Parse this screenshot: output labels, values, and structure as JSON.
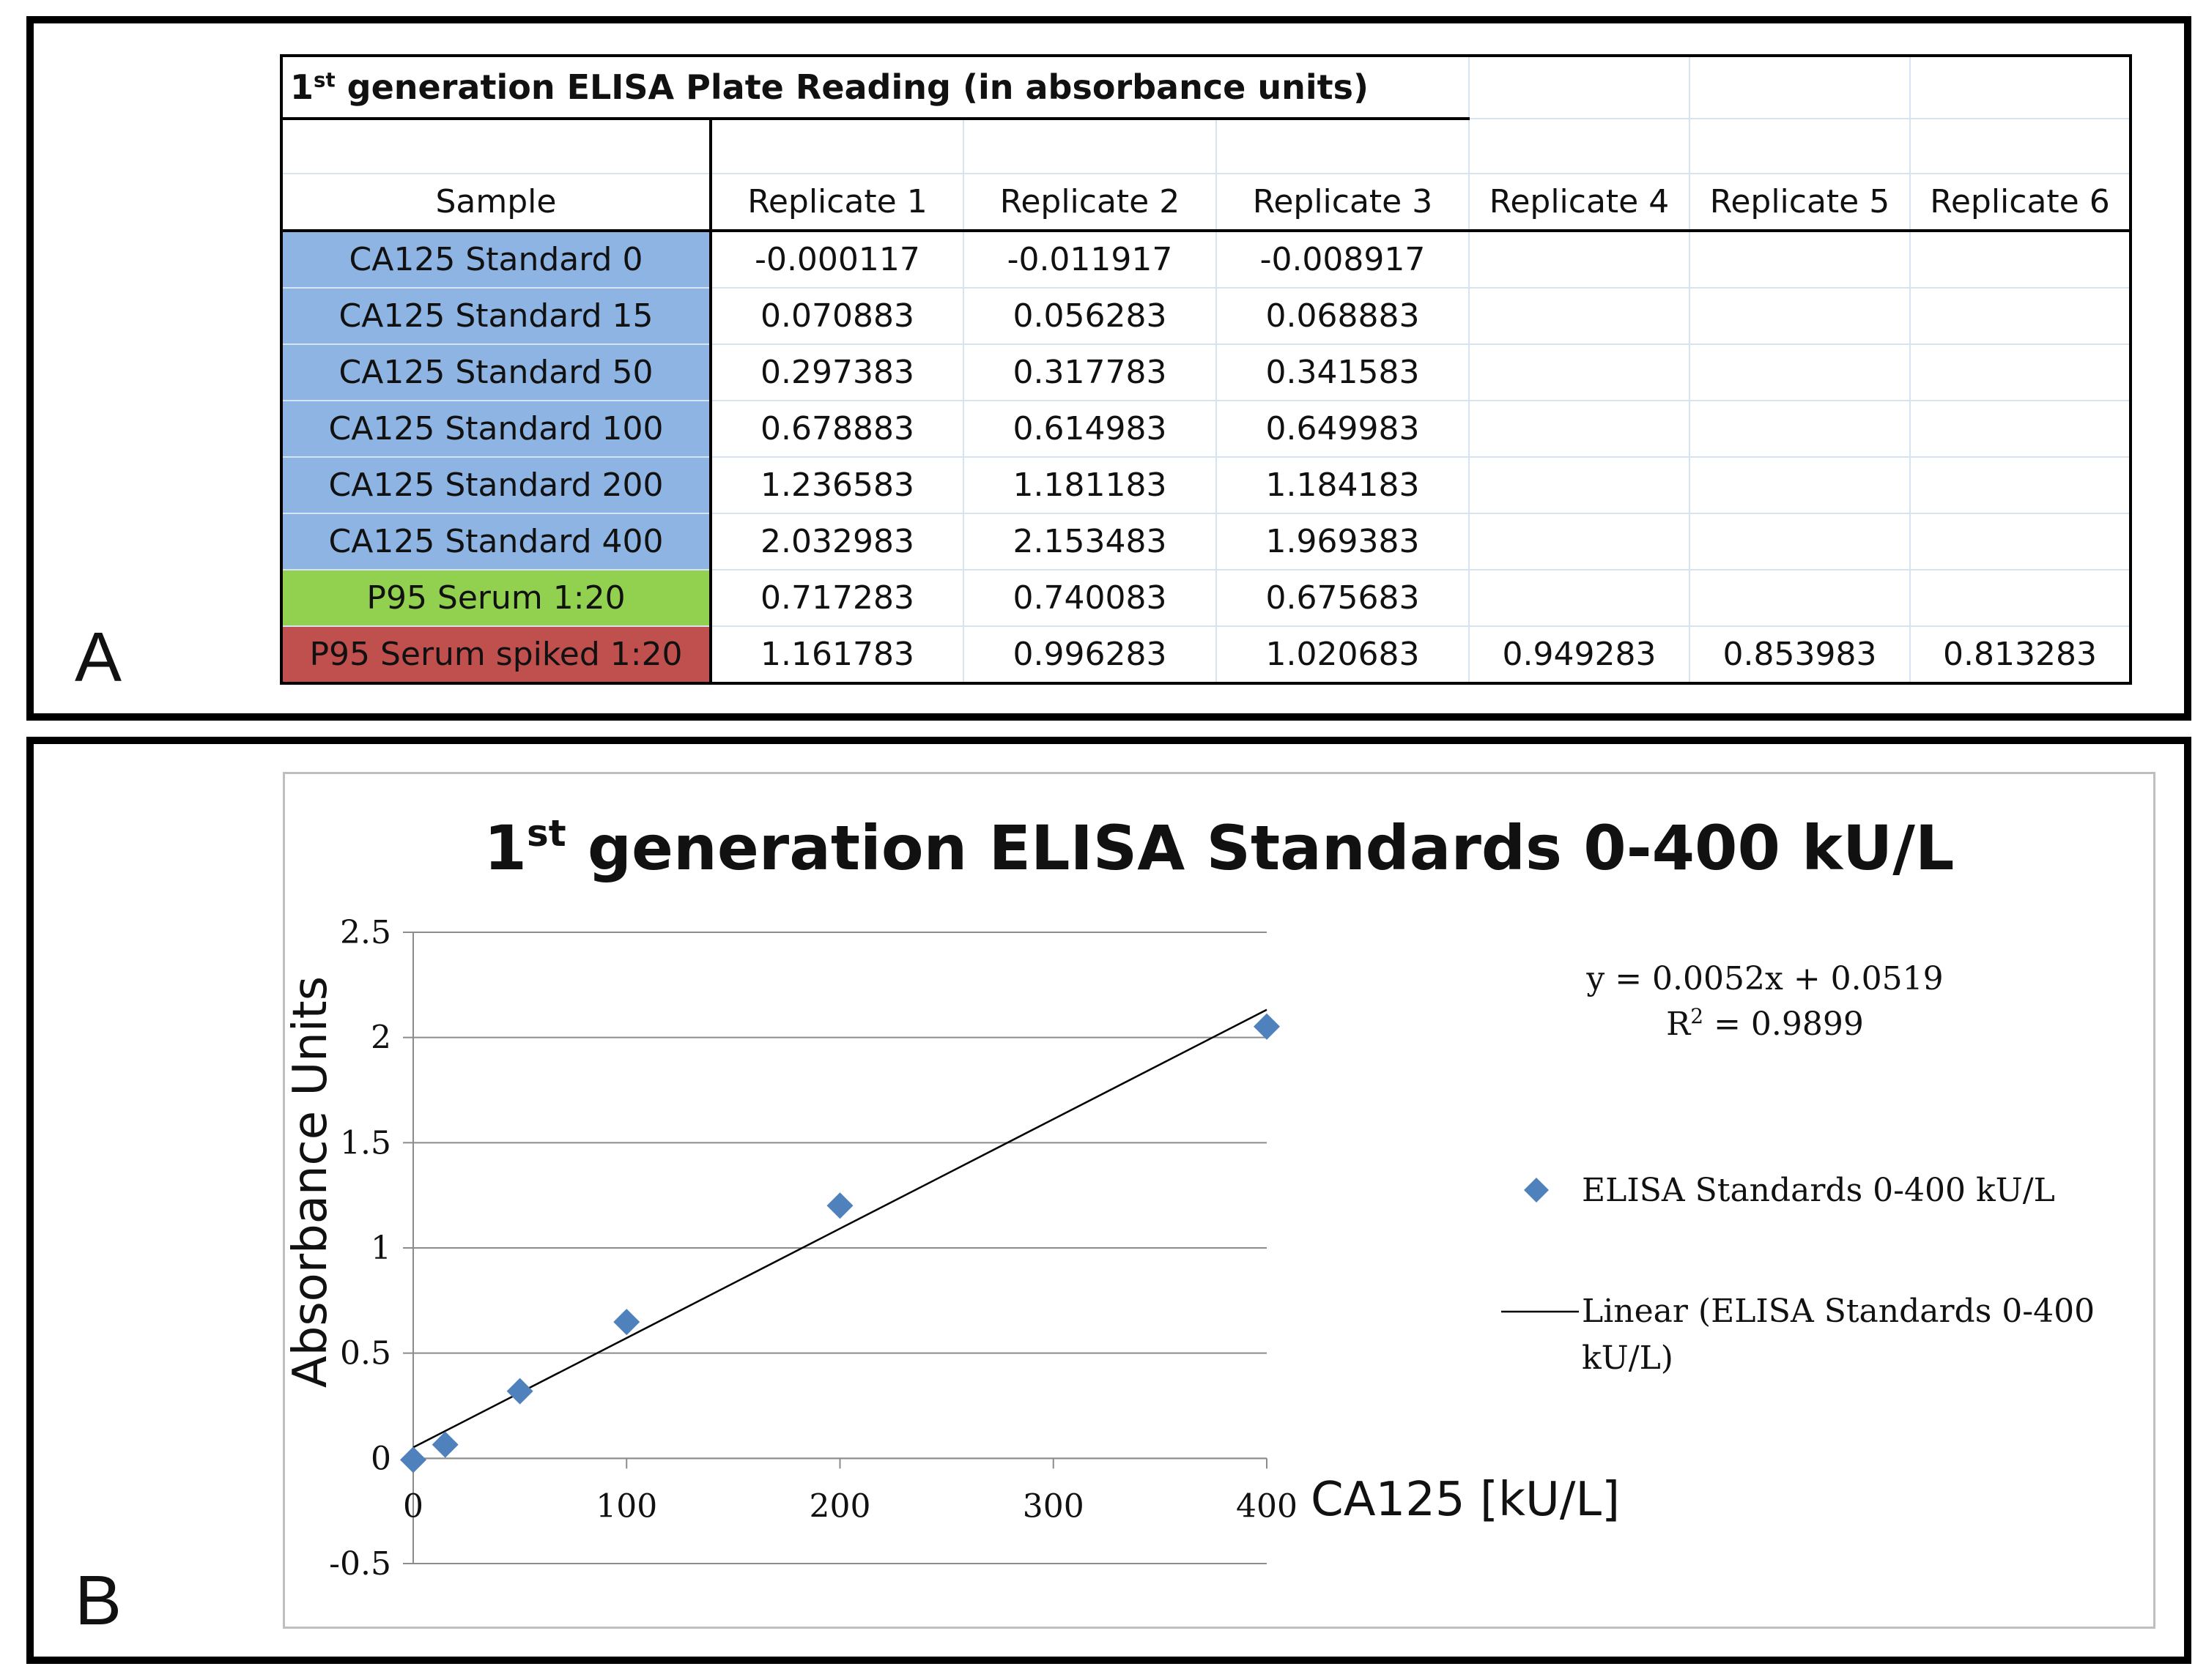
{
  "panel_a": {
    "letter": "A",
    "table": {
      "title_main": "1",
      "title_sup": "st",
      "title_rest": " generation ELISA Plate Reading (in absorbance units)",
      "headers": [
        "Sample",
        "Replicate 1",
        "Replicate 2",
        "Replicate 3",
        "Replicate 4",
        "Replicate 5",
        "Replicate 6"
      ],
      "rows": [
        {
          "sample": "CA125 Standard 0",
          "kind": "std",
          "values": [
            "-0.000117",
            "-0.011917",
            "-0.008917",
            "",
            "",
            ""
          ]
        },
        {
          "sample": "CA125 Standard 15",
          "kind": "std",
          "values": [
            "0.070883",
            "0.056283",
            "0.068883",
            "",
            "",
            ""
          ]
        },
        {
          "sample": "CA125 Standard 50",
          "kind": "std",
          "values": [
            "0.297383",
            "0.317783",
            "0.341583",
            "",
            "",
            ""
          ]
        },
        {
          "sample": "CA125 Standard 100",
          "kind": "std",
          "values": [
            "0.678883",
            "0.614983",
            "0.649983",
            "",
            "",
            ""
          ]
        },
        {
          "sample": "CA125 Standard 200",
          "kind": "std",
          "values": [
            "1.236583",
            "1.181183",
            "1.184183",
            "",
            "",
            ""
          ]
        },
        {
          "sample": "CA125 Standard 400",
          "kind": "std",
          "values": [
            "2.032983",
            "2.153483",
            "1.969383",
            "",
            "",
            ""
          ]
        },
        {
          "sample": "P95 Serum 1:20",
          "kind": "serum",
          "values": [
            "0.717283",
            "0.740083",
            "0.675683",
            "",
            "",
            ""
          ]
        },
        {
          "sample": "P95 Serum spiked 1:20",
          "kind": "spiked",
          "values": [
            "1.161783",
            "0.996283",
            "1.020683",
            "0.949283",
            "0.853983",
            "0.813283"
          ]
        }
      ],
      "colors": {
        "std": "#8db4e2",
        "serum": "#92d050",
        "spiked": "#c0504d"
      }
    }
  },
  "panel_b": {
    "letter": "B"
  },
  "chart_data": {
    "type": "scatter",
    "title_main": "1",
    "title_sup": "st",
    "title_rest": " generation ELISA Standards 0-400 kU/L",
    "xlabel": "CA125 [kU/L]",
    "ylabel": "Absorbance Units",
    "xlim": [
      0,
      400
    ],
    "ylim": [
      -0.5,
      2.5
    ],
    "xticks": [
      0,
      100,
      200,
      300,
      400
    ],
    "yticks": [
      -0.5,
      0,
      0.5,
      1,
      1.5,
      2,
      2.5
    ],
    "ytick_labels": [
      "-0.5",
      "0",
      "0.5",
      "1",
      "1.5",
      "2",
      "2.5"
    ],
    "grid": "horizontal",
    "series": [
      {
        "name": "ELISA Standards 0-400 kU/L",
        "marker": "diamond",
        "color": "#4f81bd",
        "x": [
          0,
          15,
          50,
          100,
          200,
          400
        ],
        "y": [
          -0.007,
          0.065,
          0.319,
          0.648,
          1.201,
          2.052
        ]
      }
    ],
    "trendline": {
      "name_line1": "Linear (ELISA Standards 0-400",
      "name_line2": "kU/L)",
      "slope": 0.0052,
      "intercept": 0.0519,
      "color": "#000000",
      "equation": "y = 0.0052x + 0.0519",
      "r2_label": "R",
      "r2_sup": "2",
      "r2_value": " = 0.9899"
    },
    "legend_position": "right"
  }
}
